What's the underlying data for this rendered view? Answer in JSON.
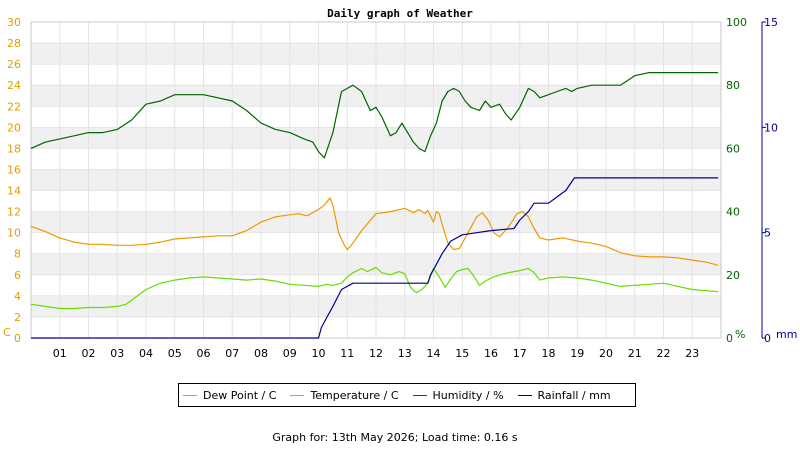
{
  "chart_data": {
    "type": "line",
    "title": "Daily graph of Weather",
    "x_ticks": [
      "01",
      "02",
      "03",
      "04",
      "05",
      "06",
      "07",
      "08",
      "09",
      "10",
      "11",
      "12",
      "13",
      "14",
      "15",
      "16",
      "17",
      "18",
      "19",
      "20",
      "21",
      "22",
      "23"
    ],
    "xlim": [
      0,
      24
    ],
    "left_axis": {
      "unit": "C",
      "ticks": [
        "0",
        "2",
        "4",
        "6",
        "8",
        "10",
        "12",
        "14",
        "16",
        "18",
        "20",
        "22",
        "24",
        "26",
        "28",
        "30"
      ],
      "ylim": [
        0,
        30
      ],
      "color": "#e0a000"
    },
    "humidity_axis": {
      "unit": "%",
      "ticks": [
        "0",
        "20",
        "40",
        "60",
        "80",
        "100"
      ],
      "ylim": [
        0,
        100
      ],
      "color": "#006400"
    },
    "rain_axis": {
      "unit": "mm",
      "ticks": [
        "0",
        "5",
        "10",
        "15"
      ],
      "ylim": [
        0,
        15
      ],
      "color": "#000090"
    },
    "series": [
      {
        "name": "Dew Point / C",
        "axis": "left",
        "color": "#66dd00",
        "points": [
          [
            0,
            3.2
          ],
          [
            0.5,
            3.0
          ],
          [
            1,
            2.8
          ],
          [
            1.5,
            2.8
          ],
          [
            2,
            2.9
          ],
          [
            2.5,
            2.9
          ],
          [
            3,
            3.0
          ],
          [
            3.3,
            3.2
          ],
          [
            3.7,
            4.0
          ],
          [
            4,
            4.6
          ],
          [
            4.5,
            5.2
          ],
          [
            5,
            5.5
          ],
          [
            5.5,
            5.7
          ],
          [
            6,
            5.8
          ],
          [
            6.5,
            5.7
          ],
          [
            7,
            5.6
          ],
          [
            7.5,
            5.5
          ],
          [
            8,
            5.6
          ],
          [
            8.5,
            5.4
          ],
          [
            9,
            5.1
          ],
          [
            9.5,
            5.0
          ],
          [
            10,
            4.9
          ],
          [
            10.3,
            5.1
          ],
          [
            10.5,
            5.0
          ],
          [
            10.8,
            5.2
          ],
          [
            11,
            5.8
          ],
          [
            11.2,
            6.2
          ],
          [
            11.5,
            6.6
          ],
          [
            11.7,
            6.3
          ],
          [
            12,
            6.7
          ],
          [
            12.2,
            6.2
          ],
          [
            12.5,
            6.0
          ],
          [
            12.8,
            6.3
          ],
          [
            13,
            6.1
          ],
          [
            13.2,
            4.8
          ],
          [
            13.4,
            4.3
          ],
          [
            13.6,
            4.6
          ],
          [
            13.8,
            5.2
          ],
          [
            14,
            6.6
          ],
          [
            14.2,
            5.8
          ],
          [
            14.4,
            4.8
          ],
          [
            14.6,
            5.6
          ],
          [
            14.8,
            6.3
          ],
          [
            15,
            6.5
          ],
          [
            15.2,
            6.6
          ],
          [
            15.4,
            5.9
          ],
          [
            15.6,
            5.0
          ],
          [
            15.8,
            5.4
          ],
          [
            16,
            5.7
          ],
          [
            16.3,
            6.0
          ],
          [
            16.6,
            6.2
          ],
          [
            17,
            6.4
          ],
          [
            17.3,
            6.6
          ],
          [
            17.5,
            6.2
          ],
          [
            17.7,
            5.5
          ],
          [
            18,
            5.7
          ],
          [
            18.5,
            5.8
          ],
          [
            19,
            5.7
          ],
          [
            19.5,
            5.5
          ],
          [
            20,
            5.2
          ],
          [
            20.5,
            4.9
          ],
          [
            21,
            5.0
          ],
          [
            21.5,
            5.1
          ],
          [
            22,
            5.2
          ],
          [
            22.5,
            4.9
          ],
          [
            23,
            4.6
          ],
          [
            23.9,
            4.4
          ]
        ]
      },
      {
        "name": "Temperature / C",
        "axis": "left",
        "color": "#ee9900",
        "points": [
          [
            0,
            10.6
          ],
          [
            0.5,
            10.1
          ],
          [
            1,
            9.5
          ],
          [
            1.5,
            9.1
          ],
          [
            2,
            8.9
          ],
          [
            2.5,
            8.9
          ],
          [
            3,
            8.8
          ],
          [
            3.5,
            8.8
          ],
          [
            4,
            8.9
          ],
          [
            4.5,
            9.1
          ],
          [
            5,
            9.4
          ],
          [
            5.5,
            9.5
          ],
          [
            6,
            9.6
          ],
          [
            6.5,
            9.7
          ],
          [
            7,
            9.7
          ],
          [
            7.5,
            10.2
          ],
          [
            8,
            11.0
          ],
          [
            8.5,
            11.5
          ],
          [
            9,
            11.7
          ],
          [
            9.3,
            11.8
          ],
          [
            9.6,
            11.6
          ],
          [
            10,
            12.2
          ],
          [
            10.2,
            12.6
          ],
          [
            10.4,
            13.3
          ],
          [
            10.5,
            12.6
          ],
          [
            10.7,
            10.0
          ],
          [
            10.9,
            8.8
          ],
          [
            11,
            8.4
          ],
          [
            11.2,
            9.0
          ],
          [
            11.5,
            10.2
          ],
          [
            12,
            11.8
          ],
          [
            12.5,
            12.0
          ],
          [
            13,
            12.3
          ],
          [
            13.3,
            11.9
          ],
          [
            13.5,
            12.2
          ],
          [
            13.7,
            11.8
          ],
          [
            13.8,
            12.1
          ],
          [
            14,
            11.0
          ],
          [
            14.1,
            12.0
          ],
          [
            14.2,
            11.8
          ],
          [
            14.3,
            10.8
          ],
          [
            14.5,
            9.0
          ],
          [
            14.7,
            8.4
          ],
          [
            14.9,
            8.5
          ],
          [
            15.2,
            10.0
          ],
          [
            15.5,
            11.5
          ],
          [
            15.7,
            11.9
          ],
          [
            15.9,
            11.2
          ],
          [
            16.1,
            10.0
          ],
          [
            16.3,
            9.6
          ],
          [
            16.6,
            10.5
          ],
          [
            16.9,
            11.8
          ],
          [
            17.1,
            12.0
          ],
          [
            17.3,
            11.5
          ],
          [
            17.5,
            10.4
          ],
          [
            17.7,
            9.5
          ],
          [
            18,
            9.3
          ],
          [
            18.5,
            9.5
          ],
          [
            19,
            9.2
          ],
          [
            19.5,
            9.0
          ],
          [
            20,
            8.7
          ],
          [
            20.5,
            8.1
          ],
          [
            21,
            7.8
          ],
          [
            21.5,
            7.7
          ],
          [
            22,
            7.7
          ],
          [
            22.5,
            7.6
          ],
          [
            23,
            7.4
          ],
          [
            23.5,
            7.2
          ],
          [
            23.9,
            6.9
          ]
        ]
      },
      {
        "name": "Humidity / %",
        "axis": "humidity",
        "color": "#006400",
        "points": [
          [
            0,
            60
          ],
          [
            0.5,
            62
          ],
          [
            1,
            63
          ],
          [
            1.5,
            64
          ],
          [
            2,
            65
          ],
          [
            2.5,
            65
          ],
          [
            3,
            66
          ],
          [
            3.5,
            69
          ],
          [
            4,
            74
          ],
          [
            4.5,
            75
          ],
          [
            5,
            77
          ],
          [
            5.5,
            77
          ],
          [
            6,
            77
          ],
          [
            6.5,
            76
          ],
          [
            7,
            75
          ],
          [
            7.5,
            72
          ],
          [
            8,
            68
          ],
          [
            8.5,
            66
          ],
          [
            9,
            65
          ],
          [
            9.5,
            63
          ],
          [
            9.8,
            62
          ],
          [
            10,
            59
          ],
          [
            10.2,
            57
          ],
          [
            10.5,
            65
          ],
          [
            10.8,
            78
          ],
          [
            11,
            79
          ],
          [
            11.2,
            80
          ],
          [
            11.5,
            78
          ],
          [
            11.8,
            72
          ],
          [
            12,
            73
          ],
          [
            12.2,
            70
          ],
          [
            12.5,
            64
          ],
          [
            12.7,
            65
          ],
          [
            12.9,
            68
          ],
          [
            13.1,
            65
          ],
          [
            13.3,
            62
          ],
          [
            13.5,
            60
          ],
          [
            13.7,
            59
          ],
          [
            13.9,
            64
          ],
          [
            14.1,
            68
          ],
          [
            14.3,
            75
          ],
          [
            14.5,
            78
          ],
          [
            14.7,
            79
          ],
          [
            14.9,
            78
          ],
          [
            15.1,
            75
          ],
          [
            15.3,
            73
          ],
          [
            15.6,
            72
          ],
          [
            15.8,
            75
          ],
          [
            16,
            73
          ],
          [
            16.3,
            74
          ],
          [
            16.5,
            71
          ],
          [
            16.7,
            69
          ],
          [
            17,
            73
          ],
          [
            17.3,
            79
          ],
          [
            17.5,
            78
          ],
          [
            17.7,
            76
          ],
          [
            18,
            77
          ],
          [
            18.3,
            78
          ],
          [
            18.6,
            79
          ],
          [
            18.8,
            78
          ],
          [
            19,
            79
          ],
          [
            19.5,
            80
          ],
          [
            20,
            80
          ],
          [
            20.5,
            80
          ],
          [
            21,
            83
          ],
          [
            21.5,
            84
          ],
          [
            22,
            84
          ],
          [
            22.5,
            84
          ],
          [
            23,
            84
          ],
          [
            23.5,
            84
          ],
          [
            23.9,
            84
          ]
        ]
      },
      {
        "name": "Rainfall / mm",
        "axis": "rain",
        "color": "#000090",
        "points": [
          [
            0,
            0
          ],
          [
            10.0,
            0
          ],
          [
            10.1,
            0.5
          ],
          [
            10.3,
            1.0
          ],
          [
            10.5,
            1.5
          ],
          [
            10.8,
            2.3
          ],
          [
            11.2,
            2.6
          ],
          [
            12,
            2.6
          ],
          [
            13,
            2.6
          ],
          [
            13.8,
            2.6
          ],
          [
            13.9,
            3.0
          ],
          [
            14.1,
            3.5
          ],
          [
            14.3,
            4.0
          ],
          [
            14.6,
            4.6
          ],
          [
            15,
            4.9
          ],
          [
            15.5,
            5.0
          ],
          [
            16,
            5.1
          ],
          [
            16.8,
            5.2
          ],
          [
            17,
            5.6
          ],
          [
            17.3,
            6.0
          ],
          [
            17.5,
            6.4
          ],
          [
            18,
            6.4
          ],
          [
            18.3,
            6.7
          ],
          [
            18.6,
            7.0
          ],
          [
            18.9,
            7.6
          ],
          [
            19.5,
            7.6
          ],
          [
            20,
            7.6
          ],
          [
            22,
            7.6
          ],
          [
            23.9,
            7.6
          ]
        ]
      }
    ],
    "legend": "bottom-center",
    "grid": true
  },
  "footer": "Graph for: 13th May 2026; Load time: 0.16 s"
}
